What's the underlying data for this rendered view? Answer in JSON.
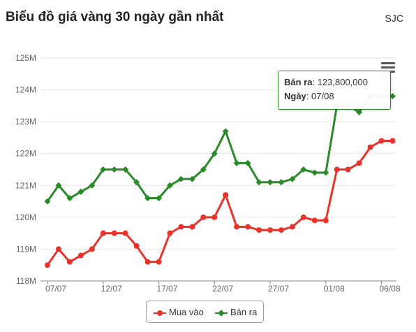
{
  "header": {
    "title": "Biểu đồ giá vàng 30 ngày gần nhất",
    "source": "SJC"
  },
  "tooltip": {
    "sell_label": "Bán ra",
    "sell_value": "123,800,000",
    "date_label": "Ngày",
    "date_value": "07/08"
  },
  "legend": {
    "buy_label": "Mua vào",
    "sell_label": "Bán ra"
  },
  "colors": {
    "buy": "#e8332a",
    "sell": "#2a8a2a",
    "grid": "#e6e6e6",
    "axis": "#666666"
  },
  "icons": {
    "menu": "hamburger-menu-icon"
  },
  "chart_data": {
    "type": "line",
    "title": "Biểu đồ giá vàng 30 ngày gần nhất",
    "xlabel": "",
    "ylabel": "",
    "ylim": [
      118,
      125
    ],
    "y_ticks": [
      "118M",
      "119M",
      "120M",
      "121M",
      "122M",
      "123M",
      "124M",
      "125M"
    ],
    "x_tick_labels": [
      "07/07",
      "12/07",
      "17/07",
      "22/07",
      "27/07",
      "01/08",
      "06/08"
    ],
    "x_tick_indices": [
      0,
      5,
      10,
      15,
      20,
      25,
      30
    ],
    "x_count": 32,
    "series": [
      {
        "name": "Mua vào",
        "marker": "circle",
        "color": "#e8332a",
        "values": [
          118.5,
          119.0,
          118.6,
          118.8,
          119.0,
          119.5,
          119.5,
          119.5,
          119.1,
          118.6,
          118.6,
          119.5,
          119.7,
          119.7,
          120.0,
          120.0,
          120.7,
          119.7,
          119.7,
          119.6,
          119.6,
          119.6,
          119.7,
          120.0,
          119.9,
          119.9,
          121.5,
          121.5,
          121.7,
          122.2,
          122.4,
          122.4
        ]
      },
      {
        "name": "Bán ra",
        "marker": "diamond",
        "color": "#2a8a2a",
        "values": [
          120.5,
          121.0,
          120.6,
          120.8,
          121.0,
          121.5,
          121.5,
          121.5,
          121.1,
          120.6,
          120.6,
          121.0,
          121.2,
          121.2,
          121.5,
          122.0,
          122.7,
          121.7,
          121.7,
          121.1,
          121.1,
          121.1,
          121.2,
          121.5,
          121.4,
          121.4,
          123.5,
          123.5,
          123.3,
          123.8,
          123.8,
          123.8
        ]
      }
    ]
  }
}
